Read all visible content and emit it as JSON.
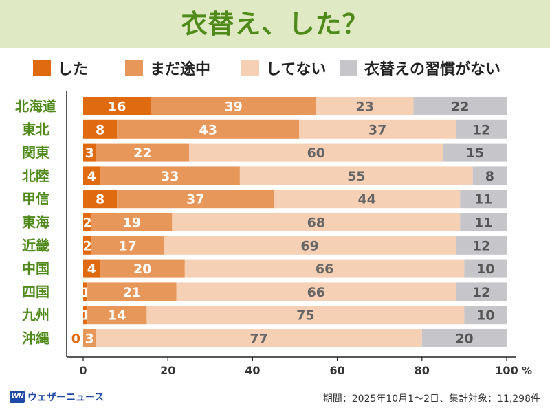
{
  "title": "衣替え、した？",
  "legend": [
    {
      "label": "した",
      "color": "#e06a10"
    },
    {
      "label": "まだ途中",
      "color": "#e8975a"
    },
    {
      "label": "してない",
      "color": "#f6d0b4"
    },
    {
      "label": "衣替えの習慣がない",
      "color": "#c6c5c9"
    }
  ],
  "footer": {
    "logo_mark": "WN",
    "logo_text": "ウェザーニュース",
    "note": "期間：2025年10月1〜2日、集計対象：11,298件"
  },
  "chart_data": {
    "type": "bar",
    "orientation": "horizontal",
    "stacked": true,
    "title": "衣替え、した？",
    "categories": [
      "北海道",
      "東北",
      "関東",
      "北陸",
      "甲信",
      "東海",
      "近畿",
      "中国",
      "四国",
      "九州",
      "沖縄"
    ],
    "series": [
      {
        "name": "した",
        "values": [
          16,
          8,
          3,
          4,
          8,
          2,
          2,
          4,
          1,
          1,
          0
        ]
      },
      {
        "name": "まだ途中",
        "values": [
          39,
          43,
          22,
          33,
          37,
          19,
          17,
          20,
          21,
          14,
          3
        ]
      },
      {
        "name": "してない",
        "values": [
          23,
          37,
          60,
          55,
          44,
          68,
          69,
          66,
          66,
          75,
          77
        ]
      },
      {
        "name": "衣替えの習慣がない",
        "values": [
          22,
          12,
          15,
          8,
          11,
          11,
          12,
          10,
          12,
          10,
          20
        ]
      }
    ],
    "xlim": [
      0,
      100
    ],
    "xticks": [
      0,
      20,
      40,
      60,
      80,
      100
    ],
    "x_unit": "%",
    "category_color": "#4f8a1a"
  }
}
